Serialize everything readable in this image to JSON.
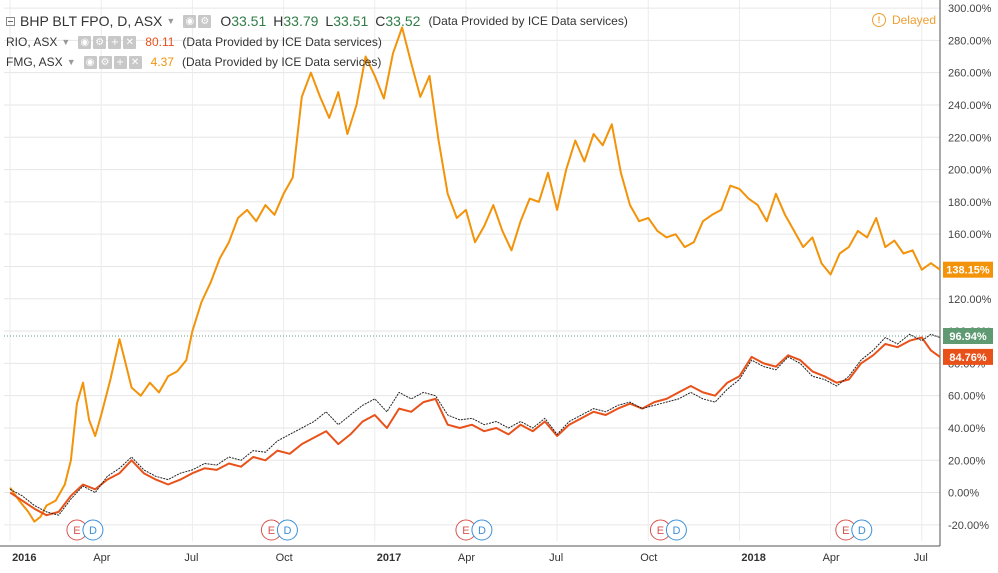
{
  "header": {
    "symbol": "BHP BLT FPO, D, ASX",
    "ohlc": [
      {
        "label": "O",
        "value": "33.51"
      },
      {
        "label": "H",
        "value": "33.79"
      },
      {
        "label": "L",
        "value": "33.51"
      },
      {
        "label": "C",
        "value": "33.52"
      }
    ],
    "provider": "(Data Provided by ICE Data services)",
    "delayed": "Delayed"
  },
  "compare": [
    {
      "symbol": "RIO, ASX",
      "value": "80.11",
      "provider": "(Data Provided by ICE Data services)",
      "color": "#e8521a"
    },
    {
      "symbol": "FMG, ASX",
      "value": "4.37",
      "provider": "(Data Provided by ICE Data services)",
      "color": "#f2930a"
    }
  ],
  "chart_data": {
    "type": "line",
    "y_unit": "%",
    "ylim": [
      -30,
      305
    ],
    "y_ticks": [
      "300.00%",
      "280.00%",
      "260.00%",
      "240.00%",
      "220.00%",
      "200.00%",
      "180.00%",
      "160.00%",
      "140.00%",
      "120.00%",
      "100.00%",
      "80.00%",
      "60.00%",
      "40.00%",
      "20.00%",
      "0.00%",
      "-20.00%"
    ],
    "y_tick_values": [
      300,
      280,
      260,
      240,
      220,
      200,
      180,
      160,
      140,
      120,
      100,
      80,
      60,
      40,
      20,
      0,
      -20
    ],
    "x_ticks": [
      "2016",
      "Apr",
      "Jul",
      "Oct",
      "2017",
      "Apr",
      "Jul",
      "Oct",
      "2018",
      "Apr",
      "Jul"
    ],
    "x_tick_values": [
      0,
      3,
      6,
      9,
      12,
      15,
      18,
      21,
      24,
      27,
      30
    ],
    "xlim": [
      -0.2,
      30.6
    ],
    "grid": true,
    "current_line_value": 96.94,
    "series": [
      {
        "name": "FMG, ASX",
        "color": "#f2930a",
        "last_label": "138.15%",
        "x": [
          0,
          0.3,
          0.6,
          0.8,
          1.0,
          1.2,
          1.5,
          1.8,
          2.0,
          2.2,
          2.4,
          2.6,
          2.8,
          3.0,
          3.3,
          3.6,
          3.8,
          4.0,
          4.3,
          4.6,
          4.9,
          5.2,
          5.5,
          5.8,
          6.0,
          6.3,
          6.6,
          6.9,
          7.2,
          7.5,
          7.8,
          8.1,
          8.4,
          8.7,
          9.0,
          9.3,
          9.6,
          9.9,
          10.2,
          10.5,
          10.8,
          11.1,
          11.4,
          11.7,
          12.0,
          12.3,
          12.6,
          12.9,
          13.2,
          13.5,
          13.8,
          14.1,
          14.4,
          14.7,
          15.0,
          15.3,
          15.6,
          15.9,
          16.2,
          16.5,
          16.8,
          17.1,
          17.4,
          17.7,
          18.0,
          18.3,
          18.6,
          18.9,
          19.2,
          19.5,
          19.8,
          20.1,
          20.4,
          20.7,
          21.0,
          21.3,
          21.6,
          21.9,
          22.2,
          22.5,
          22.8,
          23.1,
          23.4,
          23.7,
          24.0,
          24.3,
          24.6,
          24.9,
          25.2,
          25.5,
          25.8,
          26.1,
          26.4,
          26.7,
          27.0,
          27.3,
          27.6,
          27.9,
          28.2,
          28.5,
          28.8,
          29.1,
          29.4,
          29.7,
          30.0,
          30.3,
          30.6
        ],
        "y": [
          3,
          -5,
          -12,
          -18,
          -15,
          -8,
          -5,
          5,
          20,
          55,
          68,
          45,
          35,
          48,
          70,
          95,
          80,
          65,
          60,
          68,
          62,
          72,
          75,
          82,
          100,
          118,
          130,
          145,
          155,
          170,
          175,
          168,
          178,
          172,
          185,
          195,
          245,
          260,
          245,
          232,
          248,
          222,
          240,
          270,
          258,
          244,
          272,
          288,
          266,
          245,
          258,
          218,
          185,
          170,
          175,
          155,
          165,
          178,
          162,
          150,
          168,
          182,
          180,
          198,
          175,
          200,
          218,
          205,
          222,
          215,
          228,
          198,
          178,
          168,
          170,
          162,
          158,
          160,
          152,
          155,
          168,
          172,
          175,
          190,
          188,
          182,
          178,
          168,
          185,
          172,
          162,
          152,
          158,
          142,
          135,
          148,
          152,
          162,
          158,
          170,
          152,
          156,
          148,
          150,
          138,
          142,
          138
        ]
      },
      {
        "name": "RIO, ASX",
        "color": "#e8521a",
        "last_label": "84.76%",
        "x": [
          0,
          0.4,
          0.8,
          1.2,
          1.6,
          2.0,
          2.4,
          2.8,
          3.2,
          3.6,
          4.0,
          4.4,
          4.8,
          5.2,
          5.6,
          6.0,
          6.4,
          6.8,
          7.2,
          7.6,
          8.0,
          8.4,
          8.8,
          9.2,
          9.6,
          10.0,
          10.4,
          10.8,
          11.2,
          11.6,
          12.0,
          12.4,
          12.8,
          13.2,
          13.6,
          14.0,
          14.4,
          14.8,
          15.2,
          15.6,
          16.0,
          16.4,
          16.8,
          17.2,
          17.6,
          18.0,
          18.4,
          18.8,
          19.2,
          19.6,
          20.0,
          20.4,
          20.8,
          21.2,
          21.6,
          22.0,
          22.4,
          22.8,
          23.2,
          23.6,
          24.0,
          24.4,
          24.8,
          25.2,
          25.6,
          26.0,
          26.4,
          26.8,
          27.2,
          27.6,
          28.0,
          28.4,
          28.8,
          29.2,
          29.6,
          30.0,
          30.3,
          30.6
        ],
        "y": [
          0,
          -5,
          -10,
          -14,
          -12,
          -2,
          5,
          2,
          8,
          12,
          20,
          12,
          8,
          5,
          8,
          12,
          15,
          14,
          18,
          16,
          22,
          20,
          26,
          24,
          30,
          34,
          38,
          30,
          36,
          44,
          48,
          40,
          52,
          50,
          56,
          58,
          42,
          40,
          42,
          38,
          40,
          36,
          42,
          38,
          44,
          35,
          42,
          46,
          50,
          48,
          52,
          55,
          52,
          56,
          58,
          62,
          66,
          62,
          60,
          68,
          72,
          84,
          80,
          78,
          85,
          82,
          75,
          72,
          68,
          70,
          80,
          85,
          92,
          90,
          94,
          96,
          88,
          84
        ]
      },
      {
        "name": "BHP BLT FPO, D, ASX",
        "color": "#222222",
        "last_label": "96.94%",
        "x": [
          0,
          0.4,
          0.8,
          1.2,
          1.6,
          2.0,
          2.4,
          2.8,
          3.2,
          3.6,
          4.0,
          4.4,
          4.8,
          5.2,
          5.6,
          6.0,
          6.4,
          6.8,
          7.2,
          7.6,
          8.0,
          8.4,
          8.8,
          9.2,
          9.6,
          10.0,
          10.4,
          10.8,
          11.2,
          11.6,
          12.0,
          12.4,
          12.8,
          13.2,
          13.6,
          14.0,
          14.4,
          14.8,
          15.2,
          15.6,
          16.0,
          16.4,
          16.8,
          17.2,
          17.6,
          18.0,
          18.4,
          18.8,
          19.2,
          19.6,
          20.0,
          20.4,
          20.8,
          21.2,
          21.6,
          22.0,
          22.4,
          22.8,
          23.2,
          23.6,
          24.0,
          24.4,
          24.8,
          25.2,
          25.6,
          26.0,
          26.4,
          26.8,
          27.2,
          27.6,
          28.0,
          28.4,
          28.8,
          29.2,
          29.6,
          30.0,
          30.3,
          30.6
        ],
        "y": [
          2,
          -2,
          -8,
          -12,
          -14,
          -4,
          4,
          0,
          10,
          15,
          22,
          14,
          10,
          8,
          12,
          14,
          18,
          17,
          22,
          20,
          26,
          25,
          32,
          36,
          40,
          44,
          50,
          42,
          48,
          54,
          58,
          50,
          62,
          58,
          62,
          60,
          48,
          45,
          46,
          42,
          44,
          40,
          44,
          40,
          46,
          36,
          44,
          48,
          52,
          50,
          54,
          56,
          52,
          54,
          56,
          58,
          62,
          58,
          56,
          64,
          70,
          82,
          78,
          76,
          84,
          80,
          72,
          70,
          66,
          72,
          82,
          88,
          96,
          92,
          98,
          94,
          98,
          96
        ]
      }
    ],
    "events": [
      {
        "x": 2.2,
        "labels": [
          "E",
          "D"
        ]
      },
      {
        "x": 8.6,
        "labels": [
          "E",
          "D"
        ]
      },
      {
        "x": 15.0,
        "labels": [
          "E",
          "D"
        ]
      },
      {
        "x": 21.4,
        "labels": [
          "E",
          "D"
        ]
      },
      {
        "x": 27.5,
        "labels": [
          "E",
          "D"
        ]
      }
    ]
  }
}
